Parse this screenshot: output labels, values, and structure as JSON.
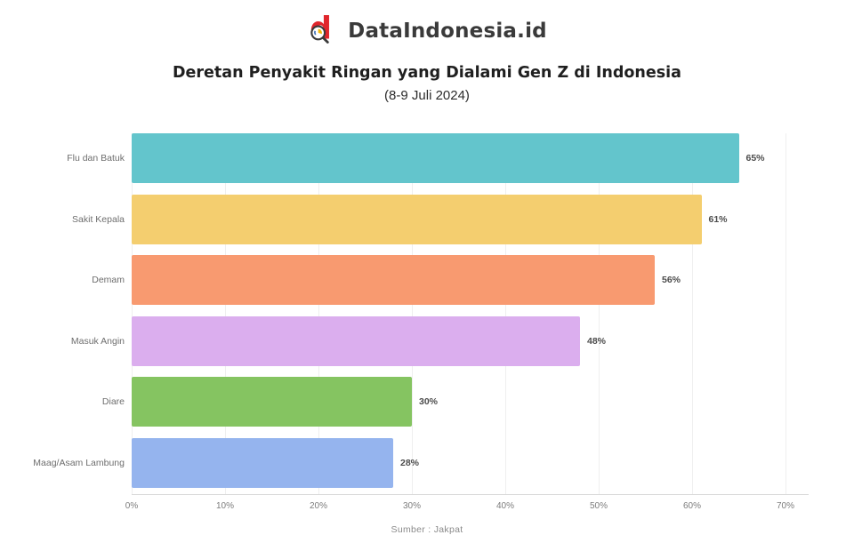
{
  "header": {
    "brand": "DataIndonesia.id",
    "title": "Deretan Penyakit Ringan yang Dialami Gen Z di Indonesia",
    "subtitle": "(8-9 Juli 2024)"
  },
  "footer": {
    "source": "Sumber : Jakpat"
  },
  "colors": {
    "brand_red": "#E0262C",
    "logo_dark": "#3b3b3b",
    "title_text": "#1f1f1f",
    "axis_text": "#7c7c7c",
    "grid": "#efefef"
  },
  "chart_data": {
    "type": "bar",
    "orientation": "horizontal",
    "title": "Deretan Penyakit Ringan yang Dialami Gen Z di Indonesia",
    "subtitle": "(8-9 Juli 2024)",
    "xlabel": "",
    "ylabel": "",
    "categories": [
      "Flu dan Batuk",
      "Sakit Kepala",
      "Demam",
      "Masuk Angin",
      "Diare",
      "Maag/Asam Lambung"
    ],
    "values": [
      65,
      61,
      56,
      48,
      30,
      28
    ],
    "value_labels": [
      "65%",
      "61%",
      "56%",
      "48%",
      "30%",
      "28%"
    ],
    "bar_colors": [
      "#63C5CC",
      "#F4CE6F",
      "#F89A70",
      "#DBAEEE",
      "#85C461",
      "#95B4EE"
    ],
    "xlim": [
      0,
      70
    ],
    "x_ticks": [
      0,
      10,
      20,
      30,
      40,
      50,
      60,
      70
    ],
    "x_tick_labels": [
      "0%",
      "10%",
      "20%",
      "30%",
      "40%",
      "50%",
      "60%",
      "70%"
    ],
    "grid": true,
    "legend": false
  }
}
